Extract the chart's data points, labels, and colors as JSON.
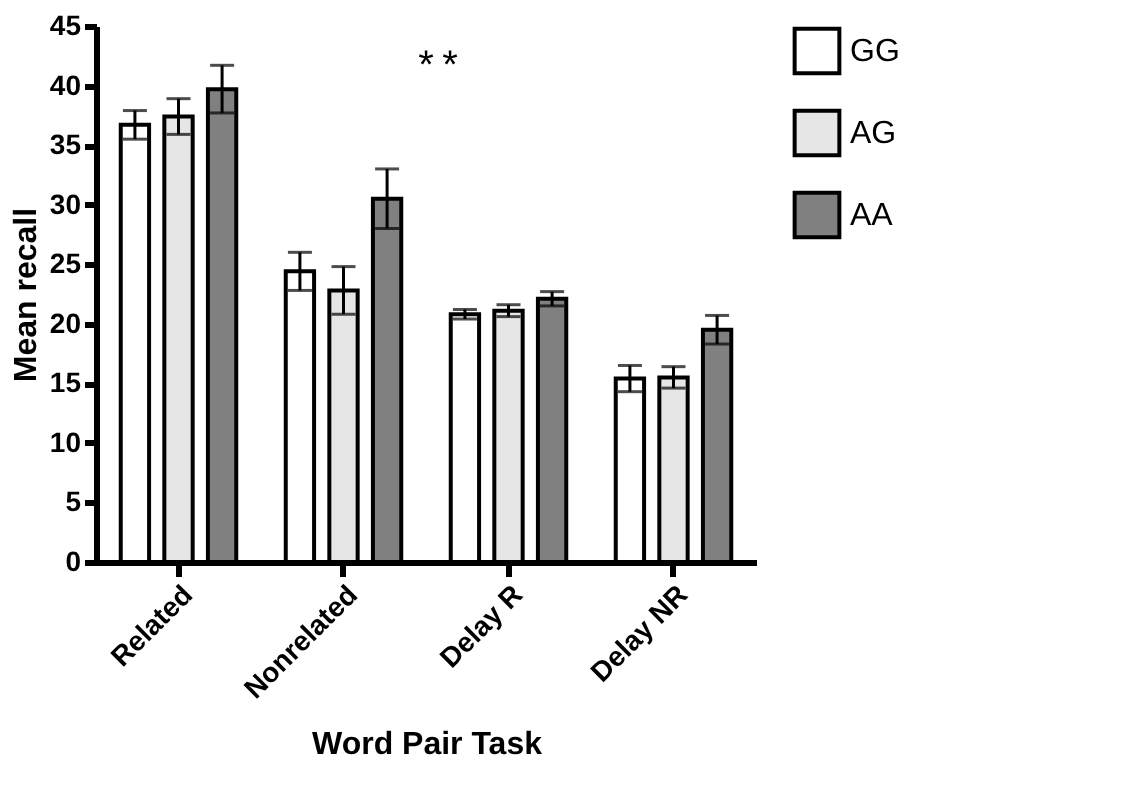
{
  "chart_data": {
    "type": "bar",
    "xlabel": "Word Pair Task",
    "ylabel": "Mean recall",
    "categories": [
      "Related",
      "Nonrelated",
      "Delay R",
      "Delay NR"
    ],
    "series": [
      {
        "name": "GG",
        "color": "#ffffff",
        "values": [
          36.7,
          24.4,
          20.8,
          15.4
        ],
        "errors": [
          1.2,
          1.6,
          0.4,
          1.1
        ]
      },
      {
        "name": "AG",
        "color": "#e6e6e6",
        "values": [
          37.4,
          22.8,
          21.1,
          15.5
        ],
        "errors": [
          1.5,
          2.0,
          0.5,
          0.9
        ]
      },
      {
        "name": "AA",
        "color": "#808080",
        "values": [
          39.7,
          30.5,
          22.1,
          19.5
        ],
        "errors": [
          2.0,
          2.5,
          0.6,
          1.2
        ]
      }
    ],
    "annotations": [
      "*",
      "*"
    ],
    "ylim": [
      0,
      45
    ],
    "yticks": [
      0,
      5,
      10,
      15,
      20,
      25,
      30,
      35,
      40,
      45
    ],
    "grid": false,
    "legend": "top right"
  }
}
